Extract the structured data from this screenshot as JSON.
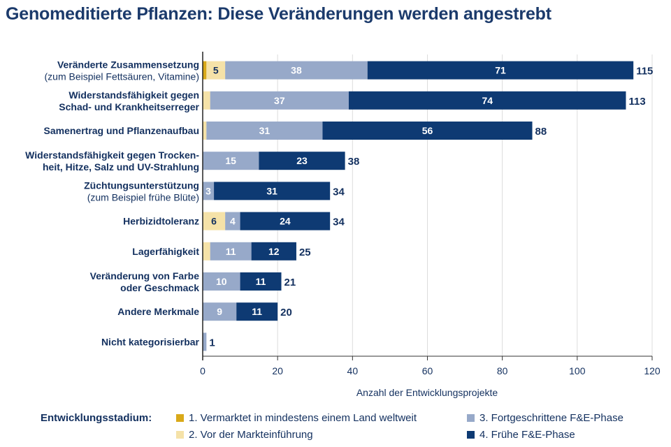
{
  "title": "Genomeditierte Pflanzen: Diese Veränderungen werden angestrebt",
  "chart_data": {
    "type": "bar",
    "orientation": "horizontal",
    "stacked": true,
    "title": "Genomeditierte Pflanzen: Diese Veränderungen werden angestrebt",
    "xlabel": "Anzahl der Entwicklungsprojekte",
    "ylabel": "",
    "xlim": [
      0,
      120
    ],
    "xticks": [
      0,
      20,
      40,
      60,
      80,
      100,
      120
    ],
    "grid": true,
    "legend_title": "Entwicklungsstadium:",
    "legend_position": "bottom",
    "categories": [
      {
        "line1": "Veränderte Zusammensetzung",
        "line2": "(zum Beispiel Fettsäuren, Vitamine)",
        "line2_bold": false
      },
      {
        "line1": "Widerstandsfähigkeit gegen",
        "line2": "Schad- und Krankheitserreger",
        "line2_bold": true
      },
      {
        "line1": "Samenertrag und Pflanzenaufbau",
        "line2": "",
        "line2_bold": true
      },
      {
        "line1": "Widerstandsfähigkeit gegen Trocken-",
        "line2": "heit, Hitze, Salz und UV-Strahlung",
        "line2_bold": true
      },
      {
        "line1": "Züchtungsunterstützung",
        "line2": "(zum Beispiel frühe Blüte)",
        "line2_bold": false
      },
      {
        "line1": "Herbizidtoleranz",
        "line2": "",
        "line2_bold": true
      },
      {
        "line1": "Lagerfähigkeit",
        "line2": "",
        "line2_bold": true
      },
      {
        "line1": "Veränderung von Farbe",
        "line2": "oder Geschmack",
        "line2_bold": true
      },
      {
        "line1": "Andere Merkmale",
        "line2": "",
        "line2_bold": true
      },
      {
        "line1": "Nicht kategorisierbar",
        "line2": "",
        "line2_bold": true
      }
    ],
    "series": [
      {
        "name": "1. Vermarktet in mindestens einem Land weltweit",
        "color": "#d9a919",
        "label_color": "#13305f",
        "values": [
          1,
          0,
          0,
          0,
          0,
          0,
          0,
          0,
          0,
          0
        ],
        "show_labels": [
          false,
          false,
          false,
          false,
          false,
          false,
          false,
          false,
          false,
          false
        ]
      },
      {
        "name": "2. Vor der Markteinführung",
        "color": "#f5e2a8",
        "label_color": "#13305f",
        "values": [
          5,
          2,
          1,
          0,
          0,
          6,
          2,
          0,
          0,
          0
        ],
        "show_labels": [
          true,
          false,
          false,
          false,
          false,
          true,
          false,
          false,
          false,
          false
        ]
      },
      {
        "name": "3. Fortgeschrittene F&E-Phase",
        "color": "#97a9c9",
        "label_color": "#ffffff",
        "values": [
          38,
          37,
          31,
          15,
          3,
          4,
          11,
          10,
          9,
          1
        ],
        "show_labels": [
          true,
          true,
          true,
          true,
          true,
          true,
          true,
          true,
          true,
          false
        ]
      },
      {
        "name": "4. Frühe F&E-Phase",
        "color": "#0e3a73",
        "label_color": "#ffffff",
        "values": [
          71,
          74,
          56,
          23,
          31,
          24,
          12,
          11,
          11,
          0
        ],
        "show_labels": [
          true,
          true,
          true,
          true,
          true,
          true,
          true,
          true,
          true,
          false
        ]
      }
    ],
    "totals": [
      115,
      113,
      88,
      38,
      34,
      34,
      25,
      21,
      20,
      1
    ]
  }
}
